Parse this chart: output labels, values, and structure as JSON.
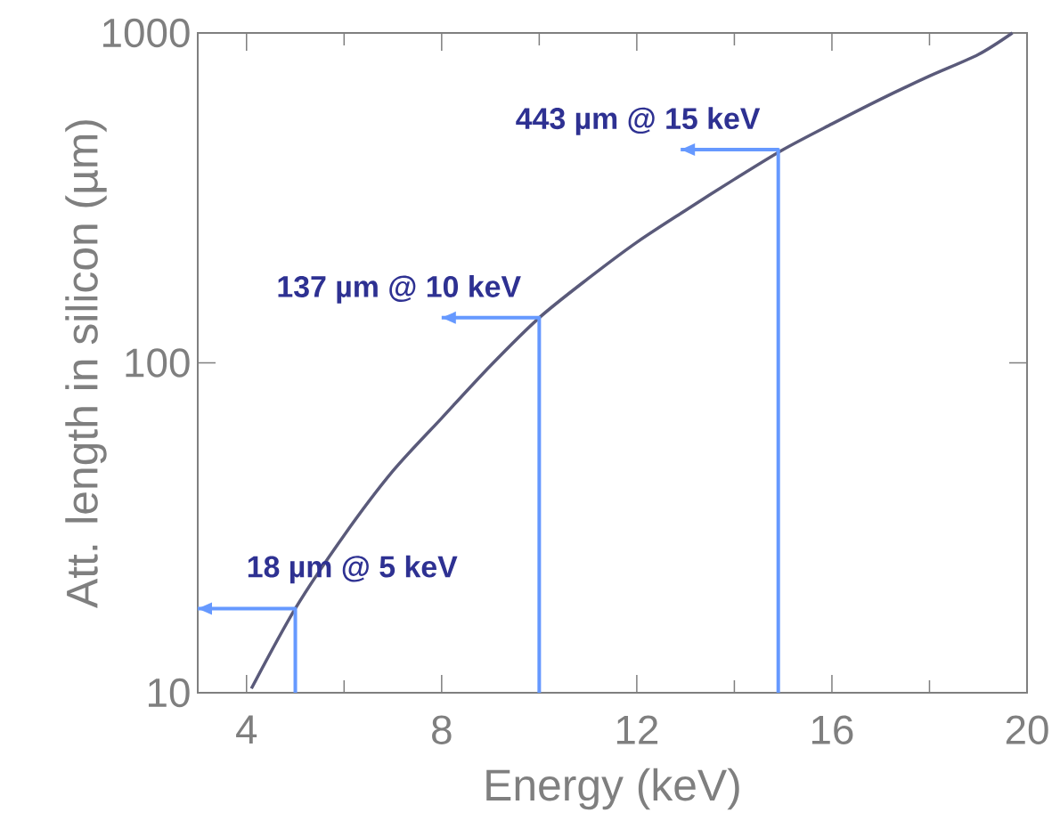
{
  "chart_data": {
    "type": "line",
    "xlabel": "Energy (keV)",
    "ylabel": "Att. length in silicon (µm)",
    "series": [
      {
        "color": "#5a5a7a",
        "x": [
          4.1,
          5,
          6,
          7,
          8,
          9,
          10,
          11,
          12,
          13,
          14,
          15,
          16,
          17,
          18,
          19,
          19.7
        ],
        "values": [
          10.3,
          18,
          30,
          47,
          68,
          98,
          137,
          180,
          232,
          290,
          360,
          443,
          530,
          630,
          740,
          860,
          1000
        ]
      },
      {
        "color": "#6699ff",
        "x": [
          5,
          5,
          3
        ],
        "values": [
          10,
          18,
          18
        ]
      },
      {
        "color": "#6699ff",
        "x": [
          10,
          10,
          8
        ],
        "values": [
          10,
          137,
          137
        ]
      },
      {
        "color": "#6699ff",
        "x": [
          14.9,
          14.9,
          12.9
        ],
        "values": [
          10,
          443,
          443
        ]
      }
    ],
    "xlim": [
      3,
      20
    ],
    "ylim": [
      10,
      1000
    ],
    "xticks": [
      4,
      8,
      12,
      16,
      20
    ],
    "yticks": [
      10,
      100,
      1000
    ],
    "log": "y",
    "annotations": [
      {
        "text": "18 µm @ 5 keV",
        "x": 5,
        "y": 18
      },
      {
        "text": "137 µm @ 10 keV",
        "x": 10,
        "y": 137
      },
      {
        "text": "443 µm @ 15 keV",
        "x": 14.9,
        "y": 443
      }
    ]
  }
}
